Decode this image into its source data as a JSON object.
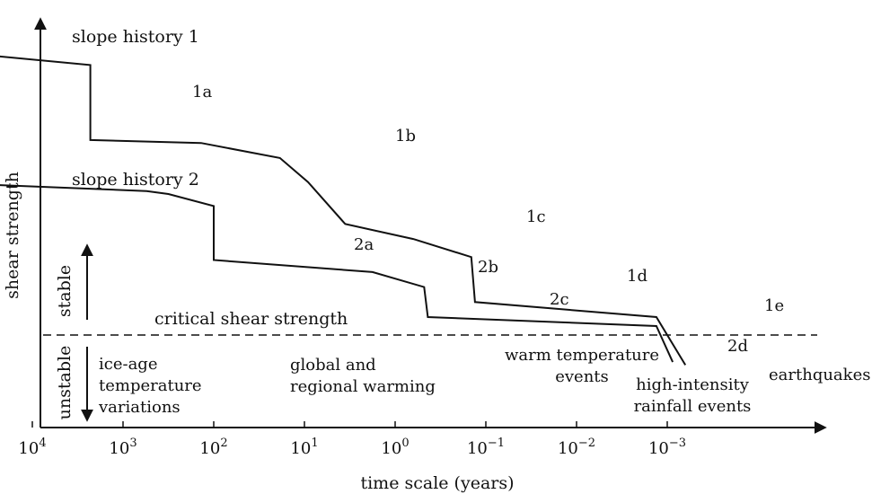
{
  "chart_data": {
    "type": "line",
    "title": "",
    "xlabel": "time scale (years)",
    "ylabel": "shear strength",
    "x_ticks": [
      {
        "base": "10",
        "exp": "4"
      },
      {
        "base": "10",
        "exp": "3"
      },
      {
        "base": "10",
        "exp": "2"
      },
      {
        "base": "10",
        "exp": "1"
      },
      {
        "base": "10",
        "exp": "0"
      },
      {
        "base": "10",
        "exp": "−1"
      },
      {
        "base": "10",
        "exp": "−2"
      },
      {
        "base": "10",
        "exp": "−3"
      }
    ],
    "series": [
      {
        "name": "slope history 1",
        "points": [
          [
            4.4,
            0.93
          ],
          [
            3.36,
            0.9
          ],
          [
            3.36,
            0.65
          ],
          [
            2.14,
            0.64
          ],
          [
            1.27,
            0.59
          ],
          [
            0.96,
            0.51
          ],
          [
            0.55,
            0.37
          ],
          [
            -0.2,
            0.32
          ],
          [
            -0.84,
            0.26
          ],
          [
            -0.88,
            0.11
          ],
          [
            -2.88,
            0.06
          ],
          [
            -3.2,
            -0.1
          ]
        ],
        "step_labels": [
          "1a",
          "1b",
          "1c",
          "1d",
          "1e"
        ]
      },
      {
        "name": "slope history 2",
        "points": [
          [
            4.4,
            0.5
          ],
          [
            2.74,
            0.48
          ],
          [
            2.5,
            0.47
          ],
          [
            2.0,
            0.43
          ],
          [
            2.0,
            0.25
          ],
          [
            0.25,
            0.21
          ],
          [
            -0.32,
            0.16
          ],
          [
            -0.36,
            0.06
          ],
          [
            -2.88,
            0.03
          ],
          [
            -3.06,
            -0.09
          ]
        ],
        "step_labels": [
          "2a",
          "2b",
          "2c",
          "2d"
        ]
      }
    ],
    "threshold": {
      "label": "critical shear strength",
      "y": 0
    },
    "zones": {
      "above": "stable",
      "below": "unstable"
    },
    "events": [
      [
        "ice-age",
        "temperature",
        "variations"
      ],
      [
        "global and",
        "regional warming"
      ],
      [
        "warm temperature",
        "events"
      ],
      [
        "high-intensity",
        "rainfall events"
      ],
      [
        "earthquakes"
      ]
    ]
  }
}
